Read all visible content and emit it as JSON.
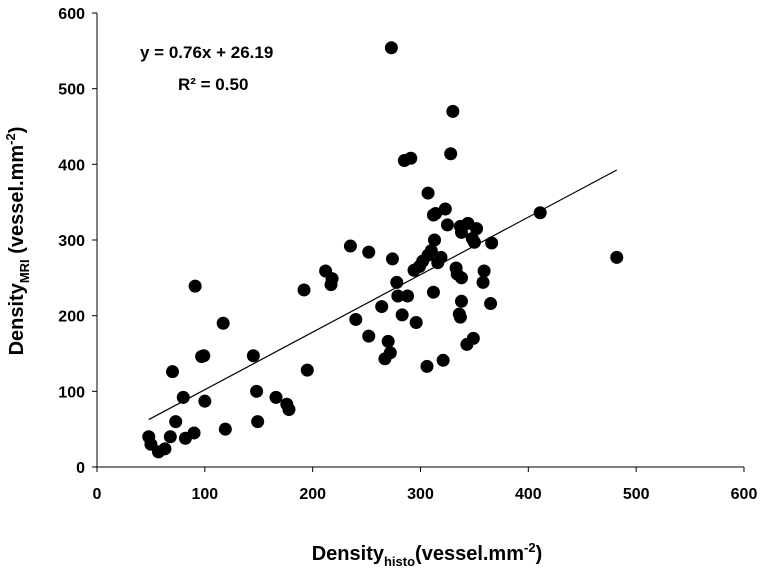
{
  "chart_data": {
    "type": "scatter",
    "xlim": [
      0,
      600
    ],
    "ylim": [
      0,
      600
    ],
    "xticks": [
      "0",
      "100",
      "200",
      "300",
      "400",
      "500",
      "600"
    ],
    "yticks": [
      "0",
      "100",
      "200",
      "300",
      "400",
      "500",
      "600"
    ],
    "xlabel": {
      "main": "Density",
      "sub": "histo",
      "unit": "(vessel.mm",
      "sup": "-2",
      "close": ")"
    },
    "ylabel": {
      "main": "Density",
      "sub": "MRI",
      "unit": " (vessel.mm",
      "sup": "-2",
      "close": ")"
    },
    "annotations": {
      "equation": "y = 0.76x + 26.19",
      "r2": "R² = 0.50"
    },
    "trendline": {
      "slope": 0.76,
      "intercept": 26.19,
      "x_range": [
        48,
        482
      ]
    },
    "grid": false,
    "legend": "none",
    "marker_color": "#000000",
    "points": [
      [
        48,
        40
      ],
      [
        50,
        30
      ],
      [
        57,
        20
      ],
      [
        63,
        24
      ],
      [
        68,
        40
      ],
      [
        70,
        126
      ],
      [
        73,
        60
      ],
      [
        80,
        92
      ],
      [
        82,
        38
      ],
      [
        90,
        45
      ],
      [
        91,
        239
      ],
      [
        97,
        146
      ],
      [
        99,
        147
      ],
      [
        100,
        87
      ],
      [
        117,
        190
      ],
      [
        119,
        50
      ],
      [
        145,
        147
      ],
      [
        148,
        100
      ],
      [
        149,
        60
      ],
      [
        166,
        92
      ],
      [
        176,
        83
      ],
      [
        178,
        76
      ],
      [
        192,
        234
      ],
      [
        195,
        128
      ],
      [
        212,
        259
      ],
      [
        217,
        241
      ],
      [
        218,
        249
      ],
      [
        235,
        292
      ],
      [
        240,
        195
      ],
      [
        252,
        173
      ],
      [
        252,
        284
      ],
      [
        264,
        212
      ],
      [
        267,
        143
      ],
      [
        270,
        166
      ],
      [
        272,
        151
      ],
      [
        273,
        554
      ],
      [
        274,
        275
      ],
      [
        278,
        244
      ],
      [
        279,
        226
      ],
      [
        283,
        201
      ],
      [
        285,
        405
      ],
      [
        288,
        226
      ],
      [
        291,
        408
      ],
      [
        294,
        260
      ],
      [
        296,
        191
      ],
      [
        299,
        265
      ],
      [
        302,
        272
      ],
      [
        306,
        133
      ],
      [
        307,
        280
      ],
      [
        307,
        362
      ],
      [
        310,
        286
      ],
      [
        312,
        231
      ],
      [
        312,
        333
      ],
      [
        313,
        300
      ],
      [
        314,
        335
      ],
      [
        316,
        270
      ],
      [
        319,
        277
      ],
      [
        321,
        141
      ],
      [
        323,
        341
      ],
      [
        325,
        320
      ],
      [
        328,
        414
      ],
      [
        330,
        470
      ],
      [
        333,
        263
      ],
      [
        334,
        255
      ],
      [
        336,
        202
      ],
      [
        337,
        318
      ],
      [
        337,
        198
      ],
      [
        338,
        219
      ],
      [
        338,
        310
      ],
      [
        338,
        250
      ],
      [
        343,
        162
      ],
      [
        344,
        322
      ],
      [
        348,
        302
      ],
      [
        349,
        170
      ],
      [
        350,
        297
      ],
      [
        352,
        315
      ],
      [
        358,
        244
      ],
      [
        359,
        259
      ],
      [
        365,
        216
      ],
      [
        366,
        296
      ],
      [
        411,
        336
      ],
      [
        482,
        277
      ]
    ]
  }
}
